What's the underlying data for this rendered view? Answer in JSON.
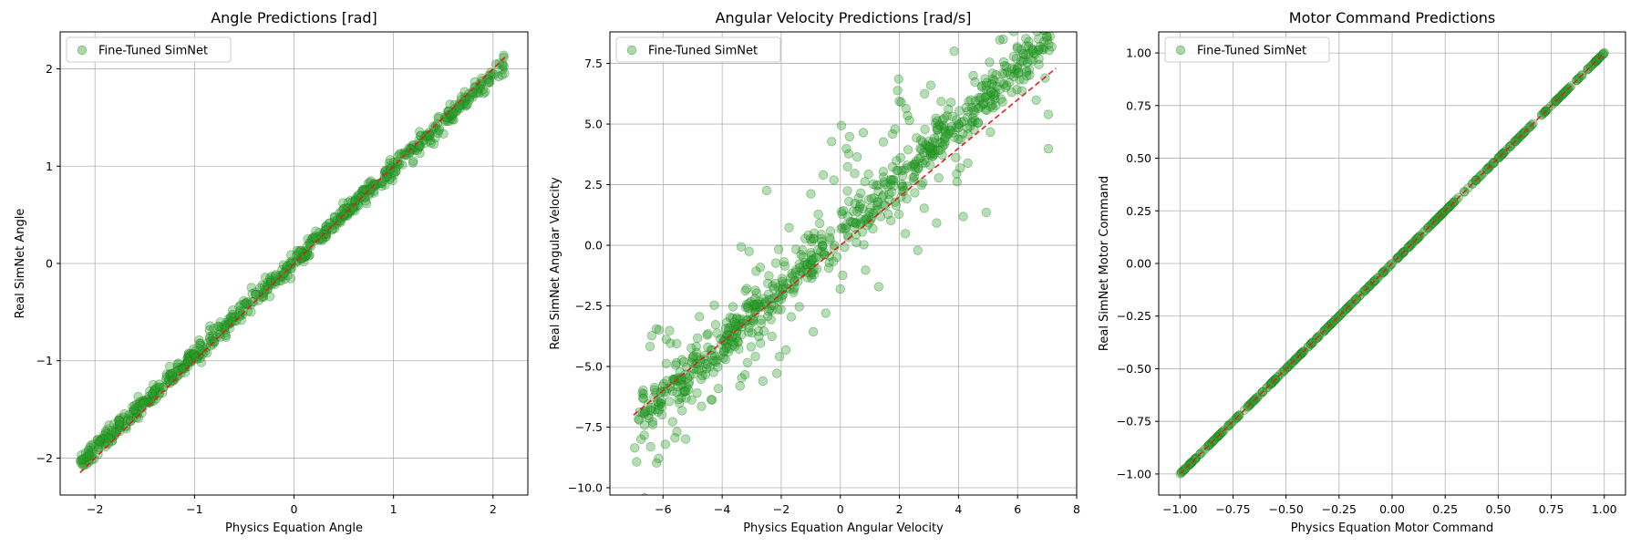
{
  "chart_data": [
    {
      "type": "scatter",
      "title": "Angle Predictions [rad]",
      "xlabel": "Physics Equation Angle",
      "ylabel": "Real SimNet Angle",
      "xlim": [
        -2.35,
        2.35
      ],
      "ylim": [
        -2.38,
        2.38
      ],
      "xticks": [
        -2,
        -1,
        0,
        1,
        2
      ],
      "xtick_labels": [
        "−2",
        "−1",
        "0",
        "1",
        "2"
      ],
      "yticks": [
        -2,
        -1,
        0,
        1,
        2
      ],
      "ytick_labels": [
        "−2",
        "−1",
        "0",
        "1",
        "2"
      ],
      "grid": true,
      "legend": {
        "position": "top-left"
      },
      "series": [
        {
          "name": "Fine-Tuned SimNet",
          "color": "#2ca02c",
          "edge_color": "#1a7a1a",
          "alpha": 0.35,
          "n_points": 700,
          "x_range": [
            -2.15,
            2.12
          ],
          "slope": 0.96,
          "intercept": 0.02,
          "noise_sd": 0.05,
          "outlier_fraction": 0.0,
          "outlier_sd": 0.0
        }
      ],
      "reference_line": {
        "label": "",
        "x": [
          -2.15,
          2.13
        ],
        "y": [
          -2.15,
          2.13
        ],
        "color": "#e02020",
        "style": "dashed"
      }
    },
    {
      "type": "scatter",
      "title": "Angular Velocity Predictions [rad/s]",
      "xlabel": "Physics Equation Angular Velocity",
      "ylabel": "Real SimNet Angular Velocity",
      "xlim": [
        -7.8,
        8.0
      ],
      "ylim": [
        -10.3,
        8.8
      ],
      "xticks": [
        -6,
        -4,
        -2,
        0,
        2,
        4,
        6,
        8
      ],
      "xtick_labels": [
        "−6",
        "−4",
        "−2",
        "0",
        "2",
        "4",
        "6",
        "8"
      ],
      "yticks": [
        -10.0,
        -7.5,
        -5.0,
        -2.5,
        0.0,
        2.5,
        5.0,
        7.5
      ],
      "ytick_labels": [
        "−10.0",
        "−7.5",
        "−5.0",
        "−2.5",
        "0.0",
        "2.5",
        "5.0",
        "7.5"
      ],
      "grid": true,
      "legend": {
        "position": "top-left"
      },
      "series": [
        {
          "name": "Fine-Tuned SimNet",
          "color": "#2ca02c",
          "edge_color": "#1a7a1a",
          "alpha": 0.35,
          "n_points": 800,
          "x_range": [
            -7.0,
            7.3
          ],
          "slope": 1.13,
          "intercept": 0.5,
          "noise_sd": 0.45,
          "outlier_fraction": 0.3,
          "outlier_sd": 2.0
        }
      ],
      "reference_line": {
        "label": "",
        "x": [
          -7.0,
          7.3
        ],
        "y": [
          -7.0,
          7.3
        ],
        "color": "#e02020",
        "style": "dashed"
      }
    },
    {
      "type": "scatter",
      "title": "Motor Command Predictions",
      "xlabel": "Physics Equation Motor Command",
      "ylabel": "Real SimNet Motor Command",
      "xlim": [
        -1.1,
        1.1
      ],
      "ylim": [
        -1.1,
        1.1
      ],
      "xticks": [
        -1.0,
        -0.75,
        -0.5,
        -0.25,
        0.0,
        0.25,
        0.5,
        0.75,
        1.0
      ],
      "xtick_labels": [
        "−1.00",
        "−0.75",
        "−0.50",
        "−0.25",
        "0.00",
        "0.25",
        "0.50",
        "0.75",
        "1.00"
      ],
      "yticks": [
        -1.0,
        -0.75,
        -0.5,
        -0.25,
        0.0,
        0.25,
        0.5,
        0.75,
        1.0
      ],
      "ytick_labels": [
        "−1.00",
        "−0.75",
        "−0.50",
        "−0.25",
        "0.00",
        "0.25",
        "0.50",
        "0.75",
        "1.00"
      ],
      "grid": true,
      "legend": {
        "position": "top-left"
      },
      "series": [
        {
          "name": "Fine-Tuned SimNet",
          "color": "#2ca02c",
          "edge_color": "#1a7a1a",
          "alpha": 0.35,
          "n_points": 400,
          "x_range": [
            -1.0,
            1.0
          ],
          "slope": 1.0,
          "intercept": 0.0,
          "noise_sd": 0.0,
          "outlier_fraction": 0.0,
          "outlier_sd": 0.0
        }
      ],
      "reference_line": {
        "label": "",
        "x": [
          -1.0,
          1.0
        ],
        "y": [
          -1.0,
          1.0
        ],
        "color": "#e02020",
        "style": "dashed"
      }
    }
  ]
}
